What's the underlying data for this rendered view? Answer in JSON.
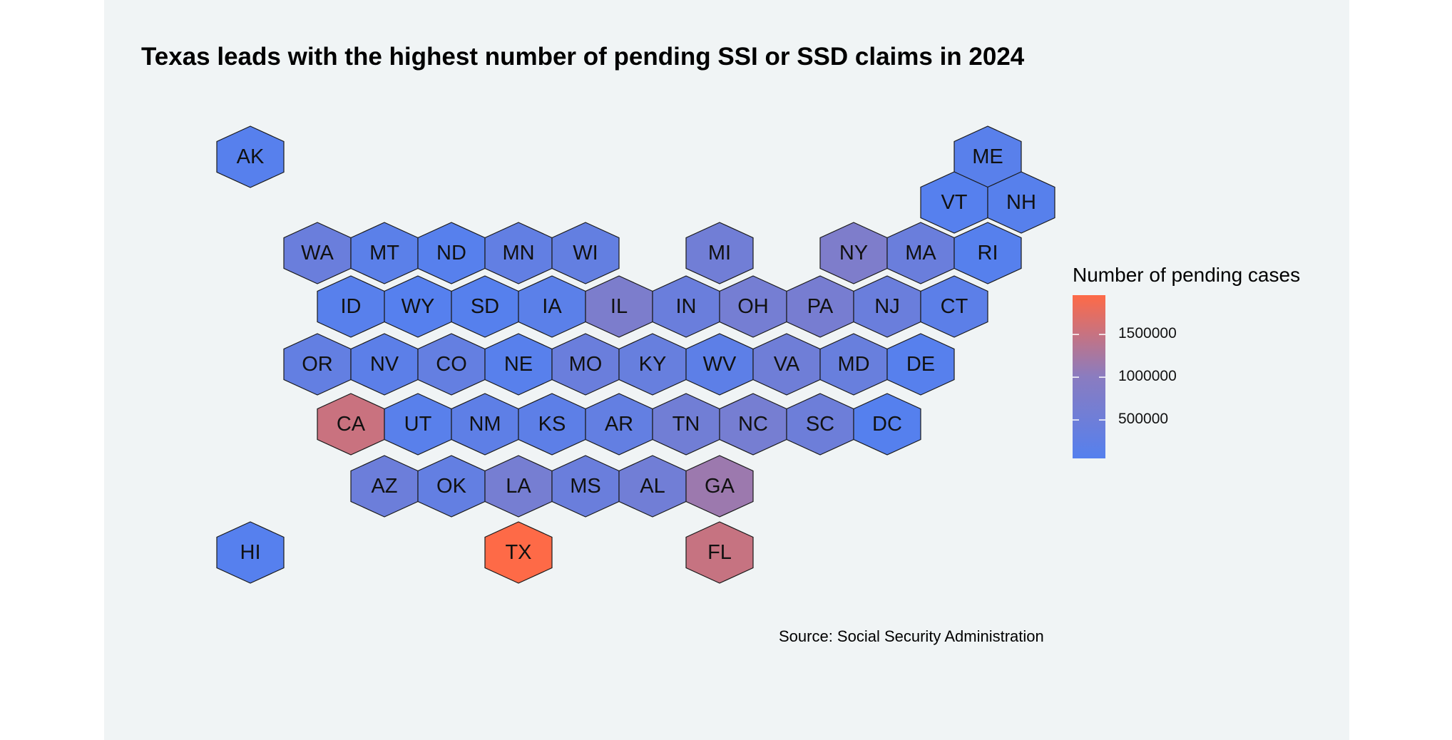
{
  "map_title": "Texas leads with the highest number of pending SSI or SSD claims in 2024",
  "legend": {
    "title": "Number of pending cases",
    "min_value": 50000,
    "max_value": 1960000,
    "ticks": [
      {
        "value": 1500000,
        "label": "1500000"
      },
      {
        "value": 1000000,
        "label": "1000000"
      },
      {
        "value": 500000,
        "label": "500000"
      }
    ],
    "low_color": "#5580ee",
    "mid_color": "#8a7cc0",
    "high_color": "#fe6a47"
  },
  "source": "Source: Social Security Administration",
  "chart_data": {
    "type": "hexbin-map",
    "value_name": "Number of pending cases",
    "states": [
      {
        "abbr": "AK",
        "col": 0,
        "row": 0,
        "value": 80000
      },
      {
        "abbr": "ME",
        "col": 11,
        "row": 0,
        "value": 120000
      },
      {
        "abbr": "VT",
        "col": 10,
        "row": 1,
        "value": 60000
      },
      {
        "abbr": "NH",
        "col": 11,
        "row": 1,
        "value": 90000
      },
      {
        "abbr": "WA",
        "col": 1,
        "row": 2,
        "value": 420000
      },
      {
        "abbr": "MT",
        "col": 2,
        "row": 2,
        "value": 150000
      },
      {
        "abbr": "ND",
        "col": 3,
        "row": 2,
        "value": 80000
      },
      {
        "abbr": "MN",
        "col": 4,
        "row": 2,
        "value": 280000
      },
      {
        "abbr": "WI",
        "col": 5,
        "row": 2,
        "value": 310000
      },
      {
        "abbr": "MI",
        "col": 7,
        "row": 2,
        "value": 550000
      },
      {
        "abbr": "NY",
        "col": 9,
        "row": 2,
        "value": 780000
      },
      {
        "abbr": "MA",
        "col": 10,
        "row": 2,
        "value": 420000
      },
      {
        "abbr": "RI",
        "col": 11,
        "row": 2,
        "value": 70000
      },
      {
        "abbr": "ID",
        "col": 1,
        "row": 3,
        "value": 100000
      },
      {
        "abbr": "WY",
        "col": 2,
        "row": 3,
        "value": 60000
      },
      {
        "abbr": "SD",
        "col": 3,
        "row": 3,
        "value": 70000
      },
      {
        "abbr": "IA",
        "col": 4,
        "row": 3,
        "value": 160000
      },
      {
        "abbr": "IL",
        "col": 5,
        "row": 3,
        "value": 760000
      },
      {
        "abbr": "IN",
        "col": 6,
        "row": 3,
        "value": 420000
      },
      {
        "abbr": "OH",
        "col": 7,
        "row": 3,
        "value": 620000
      },
      {
        "abbr": "PA",
        "col": 8,
        "row": 3,
        "value": 660000
      },
      {
        "abbr": "NJ",
        "col": 9,
        "row": 3,
        "value": 420000
      },
      {
        "abbr": "CT",
        "col": 10,
        "row": 3,
        "value": 180000
      },
      {
        "abbr": "OR",
        "col": 1,
        "row": 4,
        "value": 300000
      },
      {
        "abbr": "NV",
        "col": 2,
        "row": 4,
        "value": 180000
      },
      {
        "abbr": "CO",
        "col": 3,
        "row": 4,
        "value": 320000
      },
      {
        "abbr": "NE",
        "col": 4,
        "row": 4,
        "value": 100000
      },
      {
        "abbr": "MO",
        "col": 5,
        "row": 4,
        "value": 420000
      },
      {
        "abbr": "KY",
        "col": 6,
        "row": 4,
        "value": 380000
      },
      {
        "abbr": "WV",
        "col": 7,
        "row": 4,
        "value": 200000
      },
      {
        "abbr": "VA",
        "col": 8,
        "row": 4,
        "value": 520000
      },
      {
        "abbr": "MD",
        "col": 9,
        "row": 4,
        "value": 400000
      },
      {
        "abbr": "DE",
        "col": 10,
        "row": 4,
        "value": 80000
      },
      {
        "abbr": "CA",
        "col": 1,
        "row": 5,
        "value": 1520000
      },
      {
        "abbr": "UT",
        "col": 2,
        "row": 5,
        "value": 120000
      },
      {
        "abbr": "NM",
        "col": 3,
        "row": 5,
        "value": 220000
      },
      {
        "abbr": "KS",
        "col": 4,
        "row": 5,
        "value": 200000
      },
      {
        "abbr": "AR",
        "col": 5,
        "row": 5,
        "value": 300000
      },
      {
        "abbr": "TN",
        "col": 6,
        "row": 5,
        "value": 560000
      },
      {
        "abbr": "NC",
        "col": 7,
        "row": 5,
        "value": 640000
      },
      {
        "abbr": "SC",
        "col": 8,
        "row": 5,
        "value": 480000
      },
      {
        "abbr": "DC",
        "col": 9,
        "row": 5,
        "value": 50000
      },
      {
        "abbr": "AZ",
        "col": 2,
        "row": 6,
        "value": 470000
      },
      {
        "abbr": "OK",
        "col": 3,
        "row": 6,
        "value": 300000
      },
      {
        "abbr": "LA",
        "col": 4,
        "row": 6,
        "value": 640000
      },
      {
        "abbr": "MS",
        "col": 5,
        "row": 6,
        "value": 430000
      },
      {
        "abbr": "AL",
        "col": 6,
        "row": 6,
        "value": 550000
      },
      {
        "abbr": "GA",
        "col": 7,
        "row": 6,
        "value": 1150000
      },
      {
        "abbr": "HI",
        "col": 0,
        "row": 7,
        "value": 60000
      },
      {
        "abbr": "TX",
        "col": 4,
        "row": 7,
        "value": 1960000
      },
      {
        "abbr": "FL",
        "col": 7,
        "row": 7,
        "value": 1500000
      }
    ]
  }
}
